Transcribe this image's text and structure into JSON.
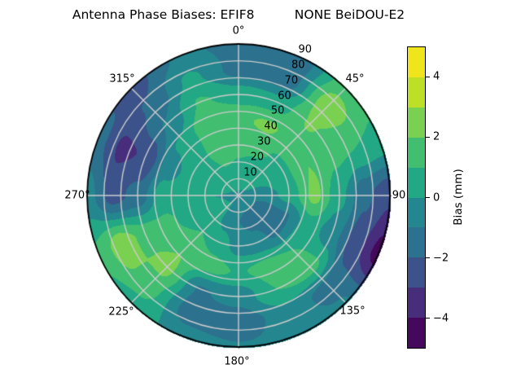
{
  "title": "Antenna Phase Biases: EFIF8          NONE BeiDOU-E2",
  "chart_data": {
    "type": "heatmap",
    "projection": "polar",
    "title": "Antenna Phase Biases: EFIF8          NONE BeiDOU-E2",
    "station": "EFIF8",
    "signal": "NONE BeiDOU-E2",
    "direction": "clockwise-from-north",
    "theta_tick_labels": [
      "0°",
      "45°",
      "90",
      "135°",
      "180°",
      "225°",
      "270°",
      "315°"
    ],
    "r_tick_labels": [
      "10",
      "20",
      "30",
      "40",
      "50",
      "60",
      "70",
      "80",
      "90"
    ],
    "r_max": 90,
    "grid": true,
    "grid_color": "#cccccc",
    "azimuth_deg": [
      0,
      22.5,
      45,
      67.5,
      90,
      112.5,
      135,
      157.5,
      180,
      202.5,
      225,
      247.5,
      270,
      292.5,
      315,
      337.5
    ],
    "radius_deg": [
      0,
      15,
      30,
      45,
      60,
      75,
      90
    ],
    "bias_mm": [
      [
        -0.1,
        0.8,
        1.2,
        1.8,
        0.6,
        -1.4,
        -1.3
      ],
      [
        -0.1,
        0.5,
        1.2,
        2.2,
        0.4,
        -1.7,
        -1.9
      ],
      [
        -0.1,
        0.3,
        0.9,
        1.5,
        2.1,
        2.7,
        1.6
      ],
      [
        -0.1,
        0.0,
        0.8,
        2.0,
        1.2,
        1.0,
        0.8
      ],
      [
        -0.1,
        -0.6,
        0.4,
        2.3,
        0.3,
        -1.8,
        -2.8
      ],
      [
        -0.1,
        -1.3,
        -1.1,
        0.6,
        -0.6,
        -2.6,
        -4.4
      ],
      [
        -0.1,
        -1.4,
        -1.2,
        1.0,
        1.4,
        -1.4,
        -0.9
      ],
      [
        -0.1,
        -1.3,
        -0.7,
        1.4,
        1.0,
        -0.4,
        -0.7
      ],
      [
        -0.1,
        -1.0,
        -0.4,
        0.9,
        -0.6,
        -1.7,
        -0.9
      ],
      [
        -0.1,
        -0.5,
        0.5,
        1.4,
        -1.1,
        -1.5,
        -0.5
      ],
      [
        -0.1,
        0.2,
        1.0,
        1.9,
        2.3,
        1.5,
        0.7
      ],
      [
        -0.1,
        0.1,
        0.6,
        1.2,
        1.6,
        2.7,
        1.2
      ],
      [
        -0.1,
        0.0,
        0.4,
        0.6,
        -1.6,
        -2.4,
        -0.6
      ],
      [
        -0.1,
        0.2,
        0.5,
        -0.5,
        -2.9,
        -3.2,
        -1.6
      ],
      [
        -0.1,
        0.6,
        0.8,
        0.3,
        -0.9,
        -1.9,
        -2.4
      ],
      [
        -0.1,
        0.9,
        1.5,
        1.9,
        1.1,
        0.2,
        -0.8
      ]
    ],
    "colorbar": {
      "label": "Bias (mm)",
      "tick_labels": [
        "4",
        "2",
        "0",
        "−2",
        "−4"
      ],
      "tick_values": [
        4,
        2,
        0,
        -2,
        -4
      ],
      "range": [
        -5,
        5
      ],
      "colormap": "viridis",
      "band_colors": [
        "#46085c",
        "#472d7b",
        "#3b528b",
        "#2c718e",
        "#24868e",
        "#22a884",
        "#42be71",
        "#7ad151",
        "#bddf26",
        "#f0e51c"
      ]
    }
  }
}
